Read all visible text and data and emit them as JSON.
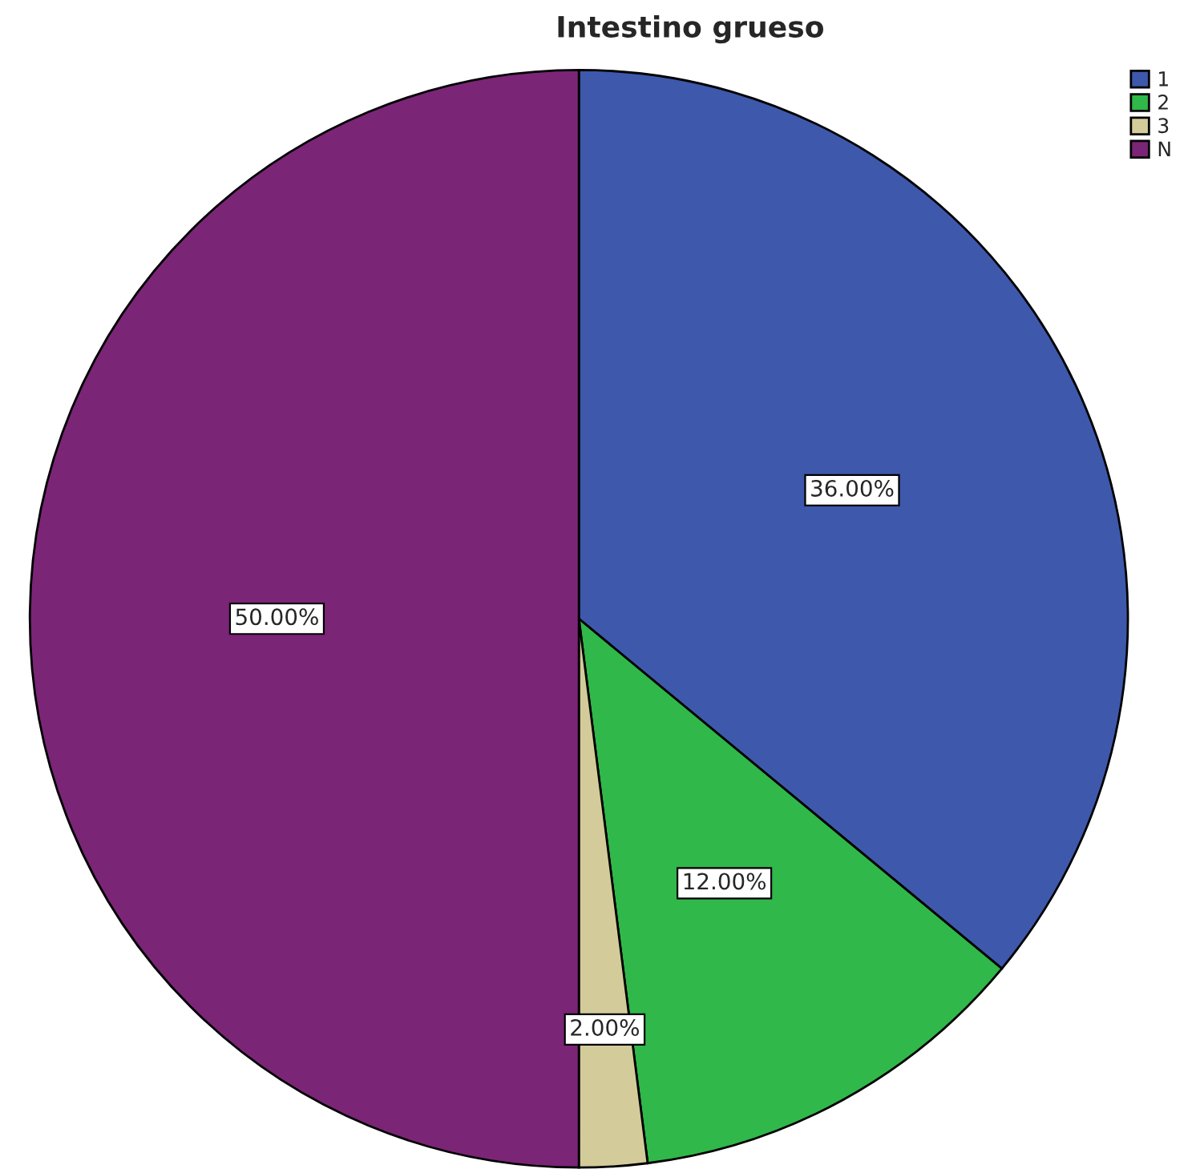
{
  "chart_data": {
    "type": "pie",
    "title": "Intestino grueso",
    "categories": [
      "1",
      "2",
      "3",
      "N"
    ],
    "values": [
      36,
      12,
      2,
      50
    ],
    "value_labels": [
      "36.00%",
      "12.00%",
      "2.00%",
      "50.00%"
    ],
    "colors": [
      "#3e58ac",
      "#30b84a",
      "#d3cc9a",
      "#7b2577"
    ],
    "legend": "top right"
  }
}
